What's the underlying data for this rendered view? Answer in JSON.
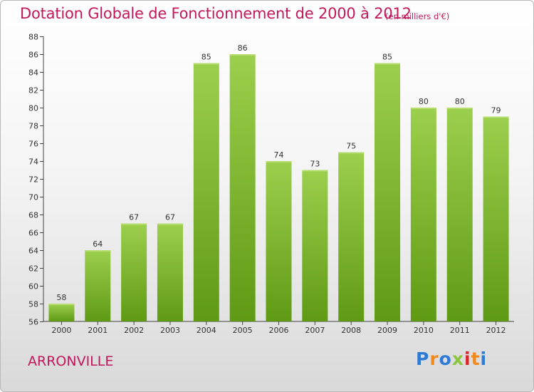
{
  "title": "Dotation Globale de Fonctionnement de 2000 à 2012",
  "unit_note": "(en milliers d'€)",
  "city": "ARRONVILLE",
  "logo": {
    "text": "Proxiti",
    "letters": [
      {
        "ch": "P",
        "color": "#2e7bd6"
      },
      {
        "ch": "r",
        "color": "#f08a1c"
      },
      {
        "ch": "o",
        "color": "#2e7bd6"
      },
      {
        "ch": "x",
        "color": "#8cc63f"
      },
      {
        "ch": "i",
        "color": "#d9262b"
      },
      {
        "ch": "t",
        "color": "#f08a1c"
      },
      {
        "ch": "i",
        "color": "#2e7bd6"
      }
    ]
  },
  "colors": {
    "title": "#c2185b",
    "bar_top": "#9ccf4d",
    "bar_bottom": "#5f9a14"
  },
  "chart_data": {
    "type": "bar",
    "title": "Dotation Globale de Fonctionnement de 2000 à 2012",
    "subtitle": "(en milliers d'€)",
    "xlabel": "",
    "ylabel": "",
    "categories": [
      "2000",
      "2001",
      "2002",
      "2003",
      "2004",
      "2005",
      "2006",
      "2007",
      "2008",
      "2009",
      "2010",
      "2011",
      "2012"
    ],
    "values": [
      58,
      64,
      67,
      67,
      85,
      86,
      74,
      73,
      75,
      85,
      80,
      80,
      79
    ],
    "ylim": [
      56,
      88
    ],
    "yticks": [
      56,
      58,
      60,
      62,
      64,
      66,
      68,
      70,
      72,
      74,
      76,
      78,
      80,
      82,
      84,
      86,
      88
    ],
    "grid": false,
    "data_labels": true
  }
}
